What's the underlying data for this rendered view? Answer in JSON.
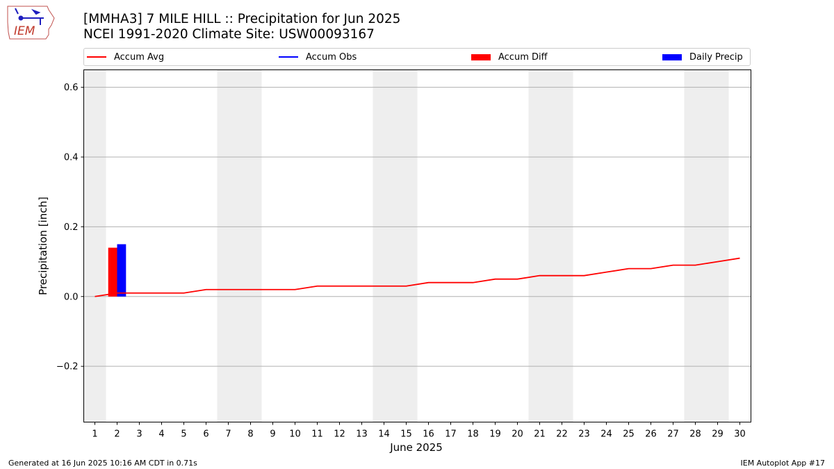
{
  "logo": {
    "text": "IEM",
    "icon": "iowa-state-outline-weather-station-icon"
  },
  "title_line1": "[MMHA3] 7 MILE HILL :: Precipitation for Jun 2025",
  "title_line2": "NCEI 1991-2020 Climate Site: USW00093167",
  "legend": [
    {
      "label": "Accum Avg",
      "kind": "line",
      "color": "#ff0000"
    },
    {
      "label": "Accum Obs",
      "kind": "line",
      "color": "#0000ff"
    },
    {
      "label": "Accum Diff",
      "kind": "bar",
      "color": "#ff0000"
    },
    {
      "label": "Daily Precip",
      "kind": "bar",
      "color": "#0000ff"
    }
  ],
  "footer_left": "Generated at 16 Jun 2025 10:16 AM CDT in 0.71s",
  "footer_right": "IEM Autoplot App #17",
  "chart_data": {
    "type": "bar",
    "xlabel": "June 2025",
    "ylabel": "Precipitation [inch]",
    "xlim": [
      0.5,
      30.5
    ],
    "ylim": [
      -0.36,
      0.65
    ],
    "yticks": [
      -0.2,
      0.0,
      0.2,
      0.4,
      0.6
    ],
    "ytick_labels": [
      "−0.2",
      "0.0",
      "0.2",
      "0.4",
      "0.6"
    ],
    "x": [
      1,
      2,
      3,
      4,
      5,
      6,
      7,
      8,
      9,
      10,
      11,
      12,
      13,
      14,
      15,
      16,
      17,
      18,
      19,
      20,
      21,
      22,
      23,
      24,
      25,
      26,
      27,
      28,
      29,
      30
    ],
    "grid": "horizontal",
    "weekend_shading_ranges": [
      [
        0.5,
        1.5
      ],
      [
        6.5,
        8.5
      ],
      [
        13.5,
        15.5
      ],
      [
        20.5,
        22.5
      ],
      [
        27.5,
        29.5
      ]
    ],
    "weekend_shading_color": "#eeeeee",
    "series": [
      {
        "name": "Accum Avg",
        "type": "line",
        "color": "#ff0000",
        "values": [
          0.0,
          0.01,
          0.01,
          0.01,
          0.01,
          0.02,
          0.02,
          0.02,
          0.02,
          0.02,
          0.03,
          0.03,
          0.03,
          0.03,
          0.03,
          0.04,
          0.04,
          0.04,
          0.05,
          0.05,
          0.06,
          0.06,
          0.06,
          0.07,
          0.08,
          0.08,
          0.09,
          0.09,
          0.1,
          0.11
        ]
      },
      {
        "name": "Accum Diff",
        "type": "bar",
        "color": "#ff0000",
        "points": [
          {
            "x": 2,
            "value": 0.14
          }
        ]
      },
      {
        "name": "Daily Precip",
        "type": "bar",
        "color": "#0000ff",
        "points": [
          {
            "x": 2,
            "value": 0.15
          }
        ]
      }
    ]
  }
}
